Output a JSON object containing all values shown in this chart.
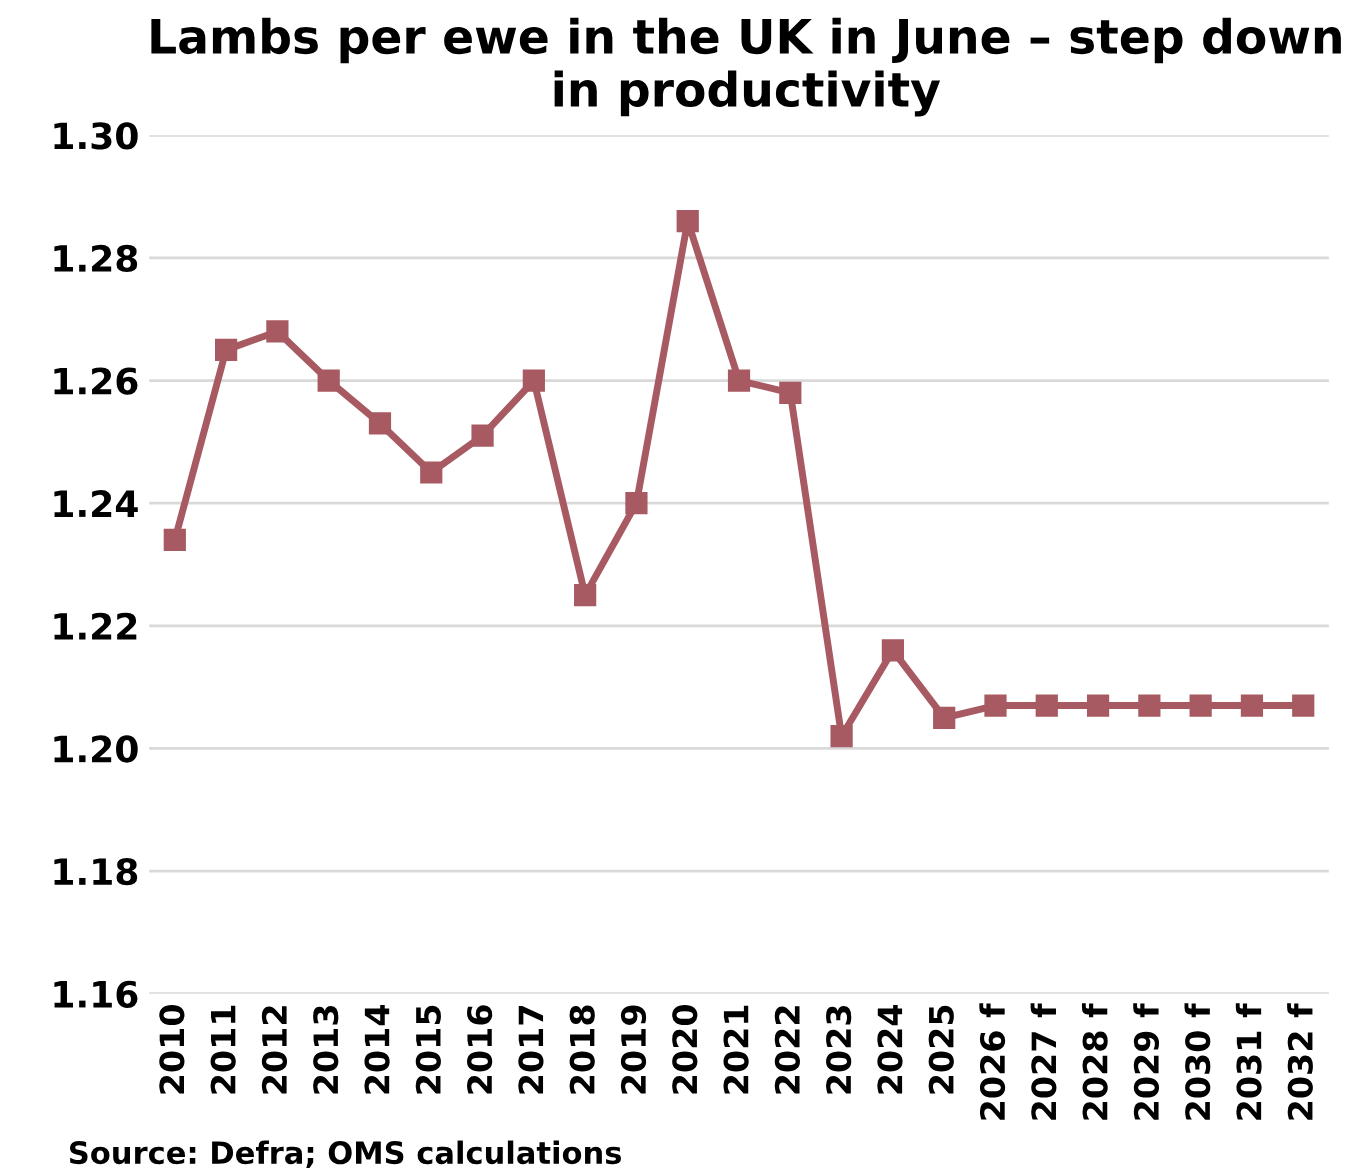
{
  "chart_data": {
    "type": "line",
    "title": "Lambs per ewe in the UK in June – step down in productivity",
    "categories": [
      "2010",
      "2011",
      "2012",
      "2013",
      "2014",
      "2015",
      "2016",
      "2017",
      "2018",
      "2019",
      "2020",
      "2021",
      "2022",
      "2023",
      "2024",
      "2025",
      "2026 f",
      "2027 f",
      "2028 f",
      "2029 f",
      "2030 f",
      "2031 f",
      "2032 f"
    ],
    "series": [
      {
        "color": "#a85a62",
        "values": [
          1.234,
          1.265,
          1.268,
          1.26,
          1.253,
          1.245,
          1.251,
          1.26,
          1.225,
          1.24,
          1.286,
          1.26,
          1.258,
          1.202,
          1.216,
          1.205,
          1.207,
          1.207,
          1.207,
          1.207,
          1.207,
          1.207,
          1.207
        ]
      }
    ],
    "ylim": [
      1.16,
      1.3
    ],
    "yticks": [
      {
        "value": 1.16,
        "label": "1.16"
      },
      {
        "value": 1.18,
        "label": "1.18"
      },
      {
        "value": 1.2,
        "label": "1.20"
      },
      {
        "value": 1.22,
        "label": "1.22"
      },
      {
        "value": 1.24,
        "label": "1.24"
      },
      {
        "value": 1.26,
        "label": "1.26"
      },
      {
        "value": 1.28,
        "label": "1.28"
      },
      {
        "value": 1.3,
        "label": "1.30"
      }
    ],
    "grid": "y",
    "marker": "square",
    "line_style": "solid",
    "legend": false,
    "annotations": [
      "Source: Defra; OMS calculations"
    ]
  }
}
